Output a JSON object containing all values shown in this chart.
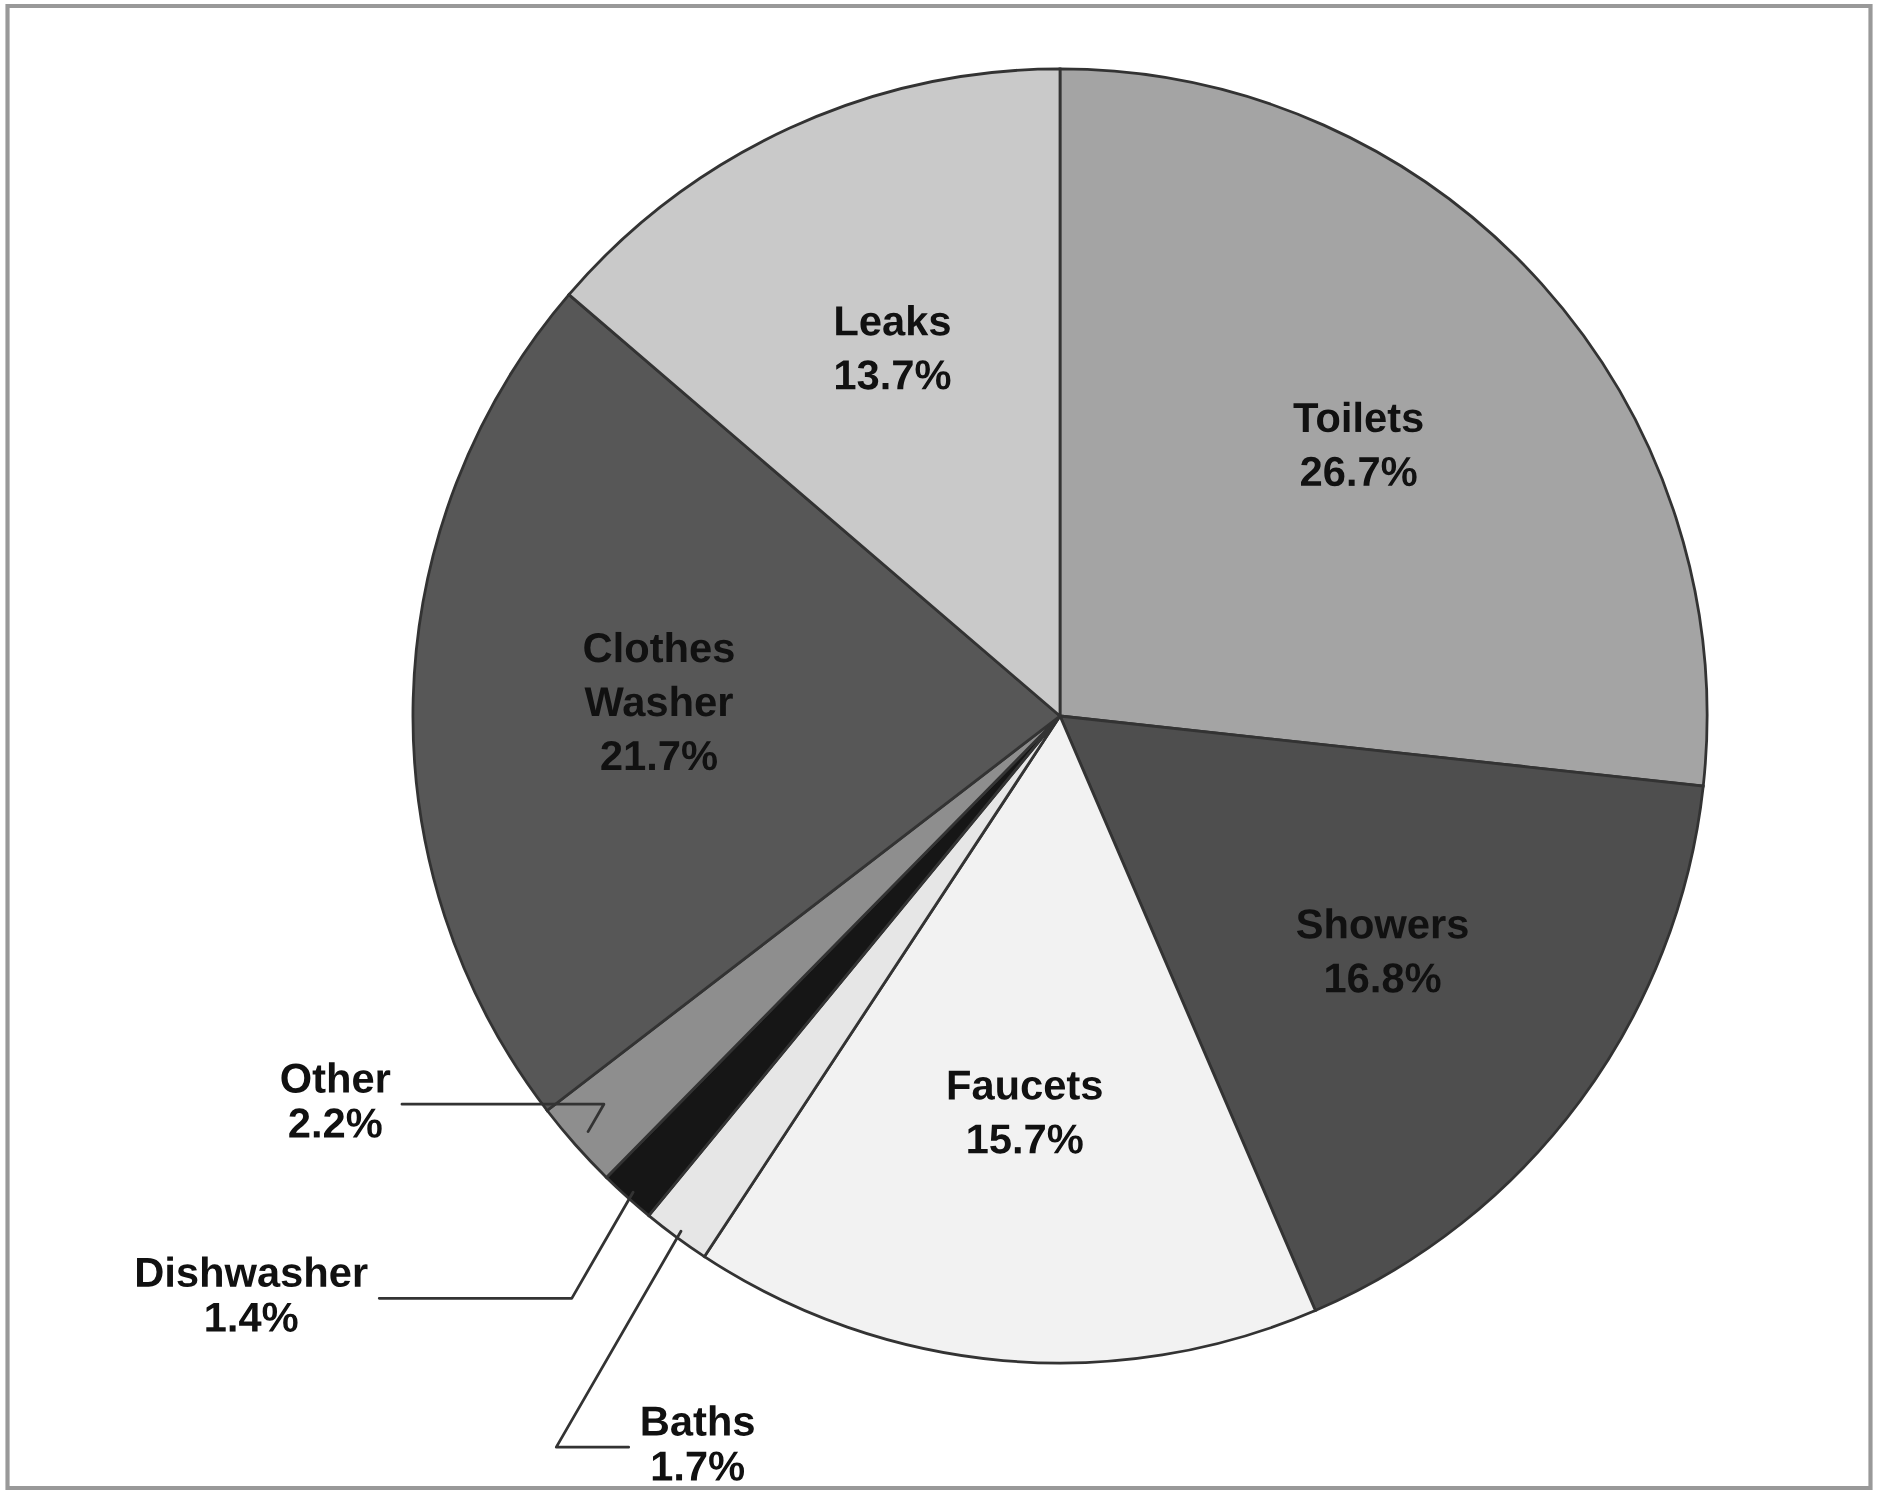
{
  "chart_data": {
    "type": "pie",
    "categories": [
      "Toilets",
      "Showers",
      "Faucets",
      "Baths",
      "Dishwasher",
      "Other",
      "Clothes Washer",
      "Leaks"
    ],
    "values": [
      26.7,
      16.8,
      15.7,
      1.7,
      1.4,
      2.2,
      21.7,
      13.7
    ],
    "value_labels": [
      "26.7%",
      "16.8%",
      "15.7%",
      "1.7%",
      "1.4%",
      "2.2%",
      "21.7%",
      "13.7%"
    ],
    "colors": [
      "#a4a4a4",
      "#4e4e4e",
      "#f2f2f2",
      "#e6e6e6",
      "#161616",
      "#8e8e8e",
      "#575757",
      "#c9c9c9"
    ],
    "legend": false
  }
}
